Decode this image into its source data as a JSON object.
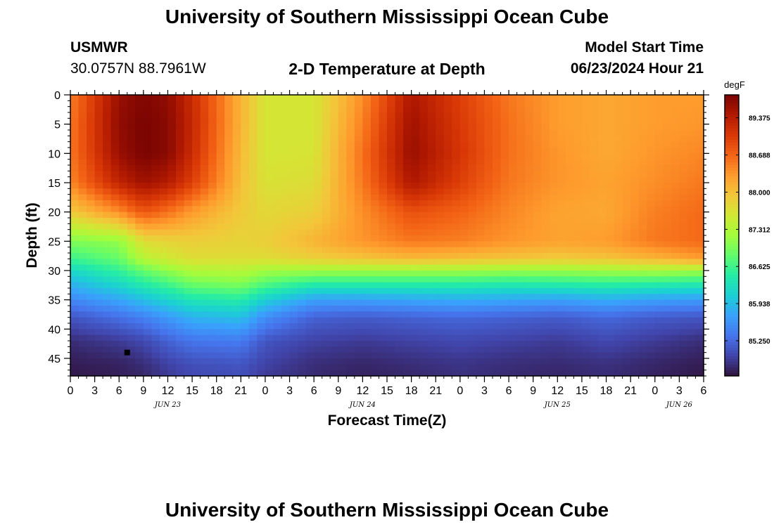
{
  "header": {
    "title": "University of Southern Mississippi Ocean Cube",
    "station_id": "USMWR",
    "coordinates": "30.0757N  88.7961W",
    "chart_title": "2-D Temperature at Depth",
    "model_start_label": "Model Start Time",
    "model_start_value": "06/23/2024 Hour 21"
  },
  "footer": {
    "title": "University of Southern Mississippi Ocean Cube"
  },
  "chart_data": {
    "type": "heatmap",
    "title": "2-D Temperature at Depth",
    "xlabel": "Forecast Time(Z)",
    "ylabel": "Depth (ft)",
    "x_range": [
      0,
      78
    ],
    "y_range": [
      0,
      48
    ],
    "x_ticks": [
      0,
      3,
      6,
      9,
      12,
      15,
      18,
      21,
      24,
      27,
      30,
      33,
      36,
      39,
      42,
      45,
      48,
      51,
      54,
      57,
      60,
      63,
      66,
      69,
      72,
      75,
      78
    ],
    "x_tick_labels": [
      "0",
      "3",
      "6",
      "9",
      "12",
      "15",
      "18",
      "21",
      "0",
      "3",
      "6",
      "9",
      "12",
      "15",
      "18",
      "21",
      "0",
      "3",
      "6",
      "9",
      "12",
      "15",
      "18",
      "21",
      "0",
      "3",
      "6"
    ],
    "date_labels": [
      {
        "x": 12,
        "text": "JUN 23"
      },
      {
        "x": 36,
        "text": "JUN 24"
      },
      {
        "x": 60,
        "text": "JUN 25"
      },
      {
        "x": 75,
        "text": "JUN 26"
      }
    ],
    "y_ticks": [
      0,
      5,
      10,
      15,
      20,
      25,
      30,
      35,
      40,
      45
    ],
    "colorbar": {
      "unit": "degF",
      "min": 84.6,
      "max": 89.8,
      "tick_values": [
        89.375,
        88.688,
        88.0,
        87.312,
        86.625,
        85.938,
        85.25
      ],
      "tick_labels": [
        "89.375",
        "88.688",
        "88.000",
        "87.312",
        "86.625",
        "85.938",
        "85.250"
      ],
      "colormap": [
        "#30123b",
        "#4145ab",
        "#4675ed",
        "#39a2fc",
        "#1bcfd4",
        "#24eca6",
        "#61fc6c",
        "#a4fc3b",
        "#d1e834",
        "#f3c63a",
        "#fe9b2d",
        "#f36315",
        "#d93806",
        "#b11901",
        "#7a0402"
      ]
    },
    "marker": {
      "x": 7,
      "y": 44
    },
    "time_hours": [
      0,
      6,
      9,
      12,
      15,
      21,
      24,
      30,
      36,
      42,
      48,
      54,
      60,
      66,
      72,
      78
    ],
    "depth_ft": [
      0,
      5,
      10,
      15,
      20,
      25,
      28,
      30,
      32,
      35,
      38,
      42,
      46,
      48
    ],
    "values": [
      [
        88.5,
        89.6,
        89.75,
        89.65,
        89.2,
        88.1,
        87.6,
        87.6,
        88.4,
        89.45,
        89.0,
        88.55,
        88.3,
        88.2,
        88.3,
        88.3
      ],
      [
        88.55,
        89.65,
        89.8,
        89.7,
        89.25,
        88.1,
        87.6,
        87.6,
        88.5,
        89.55,
        89.05,
        88.6,
        88.3,
        88.2,
        88.3,
        88.35
      ],
      [
        88.55,
        89.6,
        89.8,
        89.7,
        89.2,
        88.05,
        87.6,
        87.62,
        88.6,
        89.6,
        89.1,
        88.6,
        88.35,
        88.2,
        88.35,
        88.45
      ],
      [
        88.45,
        89.3,
        89.55,
        89.4,
        89.0,
        88.0,
        87.65,
        87.7,
        88.55,
        89.45,
        89.0,
        88.55,
        88.35,
        88.25,
        88.4,
        88.55
      ],
      [
        87.9,
        88.4,
        88.8,
        88.6,
        88.3,
        87.9,
        87.75,
        87.85,
        88.4,
        88.85,
        88.7,
        88.45,
        88.25,
        88.2,
        88.5,
        88.65
      ],
      [
        87.0,
        87.1,
        87.7,
        87.8,
        87.85,
        87.8,
        87.85,
        88.1,
        88.35,
        88.55,
        88.5,
        88.35,
        88.25,
        88.3,
        88.55,
        88.65
      ],
      [
        86.6,
        86.85,
        87.35,
        87.55,
        87.7,
        87.7,
        87.7,
        87.85,
        87.95,
        88.05,
        88.0,
        87.95,
        87.9,
        87.95,
        88.1,
        88.3
      ],
      [
        86.2,
        86.55,
        86.85,
        87.1,
        87.3,
        87.35,
        87.2,
        87.2,
        87.2,
        87.2,
        87.2,
        87.15,
        87.15,
        87.2,
        87.25,
        87.2
      ],
      [
        85.9,
        86.25,
        86.5,
        86.7,
        86.95,
        87.05,
        86.8,
        86.55,
        86.55,
        86.55,
        86.55,
        86.5,
        86.55,
        86.6,
        86.55,
        86.5
      ],
      [
        85.5,
        85.75,
        85.95,
        86.15,
        86.35,
        86.45,
        86.1,
        85.7,
        85.7,
        85.75,
        85.8,
        85.75,
        85.7,
        85.8,
        85.7,
        85.65
      ],
      [
        85.1,
        85.3,
        85.45,
        85.65,
        85.85,
        85.95,
        85.55,
        85.2,
        85.15,
        85.2,
        85.25,
        85.2,
        85.15,
        85.25,
        85.15,
        85.1
      ],
      [
        84.8,
        84.9,
        85.0,
        85.2,
        85.35,
        85.4,
        85.1,
        84.95,
        84.9,
        84.95,
        85.0,
        84.95,
        84.9,
        85.0,
        84.9,
        84.8
      ],
      [
        84.68,
        84.72,
        84.8,
        84.95,
        85.05,
        85.1,
        84.95,
        84.8,
        84.75,
        84.8,
        84.85,
        84.8,
        84.78,
        84.82,
        84.75,
        84.68
      ],
      [
        84.65,
        84.7,
        84.75,
        84.9,
        85.0,
        85.05,
        84.9,
        84.78,
        84.72,
        84.76,
        84.82,
        84.78,
        84.75,
        84.8,
        84.72,
        84.65
      ]
    ]
  }
}
